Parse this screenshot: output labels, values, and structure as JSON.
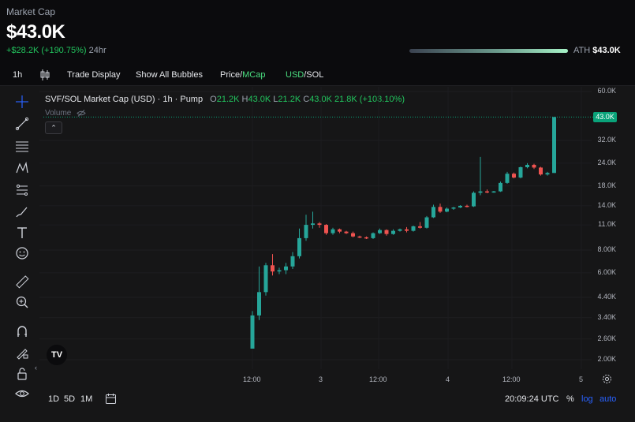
{
  "header": {
    "label": "Market Cap",
    "value": "$43.0K",
    "change_amount": "+$28.2K",
    "change_percent": "(+190.75%)",
    "change_period": "24hr",
    "ath_label": "ATH",
    "ath_value": "$43.0K",
    "ath_progress": 1.0
  },
  "toolbar": {
    "interval": "1h",
    "trade_display": "Trade Display",
    "show_all_bubbles": "Show All Bubbles",
    "price": "Price",
    "slash1": "/",
    "mcap": "MCap",
    "usd": "USD",
    "slash2": "/",
    "sol": "SOL"
  },
  "chart_header": {
    "title": "SVF/SOL Market Cap (USD) · 1h · Pump",
    "o_label": "O",
    "o_value": "21.2K",
    "h_label": "H",
    "h_value": "43.0K",
    "l_label": "L",
    "l_value": "21.2K",
    "c_label": "C",
    "c_value": "43.0K",
    "change": "21.8K (+103.10%)",
    "volume_label": "Volume"
  },
  "bottom_bar": {
    "range_1d": "1D",
    "range_5d": "5D",
    "range_1m": "1M",
    "clock": "20:09:24 UTC",
    "percent": "%",
    "log": "log",
    "auto": "auto"
  },
  "colors": {
    "up": "#26a69a",
    "down": "#ef5350",
    "accent": "#4ade80",
    "blue": "#2962ff"
  },
  "chart_data": {
    "type": "candlestick",
    "scale": "log",
    "y_ticks": [
      "60.0K",
      "32.0K",
      "24.0K",
      "18.0K",
      "14.0K",
      "11.0K",
      "8.00K",
      "6.00K",
      "4.40K",
      "3.40K",
      "2.60K",
      "2.00K"
    ],
    "last_price_label": "43.0K",
    "x_ticks": [
      "12:00",
      "3",
      "12:00",
      "4",
      "12:00",
      "5"
    ],
    "candles": [
      {
        "o": 2300,
        "h": 3700,
        "l": 2300,
        "c": 3500
      },
      {
        "o": 3500,
        "h": 6500,
        "l": 3300,
        "c": 4700
      },
      {
        "o": 4700,
        "h": 6800,
        "l": 4500,
        "c": 6600
      },
      {
        "o": 6600,
        "h": 7600,
        "l": 5800,
        "c": 6100
      },
      {
        "o": 6100,
        "h": 6400,
        "l": 5900,
        "c": 6200
      },
      {
        "o": 6200,
        "h": 6800,
        "l": 5900,
        "c": 6500
      },
      {
        "o": 6500,
        "h": 7800,
        "l": 6300,
        "c": 7400
      },
      {
        "o": 7400,
        "h": 10500,
        "l": 7200,
        "c": 9300
      },
      {
        "o": 9300,
        "h": 12500,
        "l": 9000,
        "c": 11000
      },
      {
        "o": 11000,
        "h": 13000,
        "l": 10500,
        "c": 11200
      },
      {
        "o": 11200,
        "h": 11400,
        "l": 10600,
        "c": 11000
      },
      {
        "o": 11000,
        "h": 11100,
        "l": 9700,
        "c": 9900
      },
      {
        "o": 9900,
        "h": 10600,
        "l": 9700,
        "c": 10400
      },
      {
        "o": 10400,
        "h": 10500,
        "l": 9900,
        "c": 10100
      },
      {
        "o": 10100,
        "h": 10200,
        "l": 9800,
        "c": 9900
      },
      {
        "o": 9900,
        "h": 10100,
        "l": 9400,
        "c": 9500
      },
      {
        "o": 9500,
        "h": 9600,
        "l": 9300,
        "c": 9400
      },
      {
        "o": 9400,
        "h": 9500,
        "l": 9200,
        "c": 9300
      },
      {
        "o": 9300,
        "h": 10000,
        "l": 9200,
        "c": 9900
      },
      {
        "o": 9900,
        "h": 10500,
        "l": 9800,
        "c": 10300
      },
      {
        "o": 10300,
        "h": 10400,
        "l": 9600,
        "c": 9800
      },
      {
        "o": 9800,
        "h": 10400,
        "l": 9700,
        "c": 10200
      },
      {
        "o": 10200,
        "h": 10500,
        "l": 10100,
        "c": 10400
      },
      {
        "o": 10400,
        "h": 10700,
        "l": 10000,
        "c": 10200
      },
      {
        "o": 10200,
        "h": 10900,
        "l": 10100,
        "c": 10800
      },
      {
        "o": 10800,
        "h": 11400,
        "l": 10500,
        "c": 10600
      },
      {
        "o": 10600,
        "h": 12300,
        "l": 10500,
        "c": 12100
      },
      {
        "o": 12100,
        "h": 14200,
        "l": 12000,
        "c": 13800
      },
      {
        "o": 13800,
        "h": 14400,
        "l": 12800,
        "c": 13000
      },
      {
        "o": 13000,
        "h": 13700,
        "l": 12900,
        "c": 13500
      },
      {
        "o": 13500,
        "h": 13800,
        "l": 13300,
        "c": 13700
      },
      {
        "o": 13700,
        "h": 14100,
        "l": 13600,
        "c": 14000
      },
      {
        "o": 14000,
        "h": 14200,
        "l": 13700,
        "c": 13900
      },
      {
        "o": 13900,
        "h": 16800,
        "l": 13800,
        "c": 16500
      },
      {
        "o": 16500,
        "h": 26000,
        "l": 16000,
        "c": 16800
      },
      {
        "o": 16800,
        "h": 17200,
        "l": 16400,
        "c": 16700
      },
      {
        "o": 16700,
        "h": 16900,
        "l": 16500,
        "c": 16800
      },
      {
        "o": 16800,
        "h": 19000,
        "l": 16700,
        "c": 18700
      },
      {
        "o": 18700,
        "h": 21500,
        "l": 18500,
        "c": 21000
      },
      {
        "o": 21000,
        "h": 21300,
        "l": 19800,
        "c": 20000
      },
      {
        "o": 20000,
        "h": 23000,
        "l": 19800,
        "c": 22800
      },
      {
        "o": 22800,
        "h": 24000,
        "l": 22500,
        "c": 23500
      },
      {
        "o": 23500,
        "h": 23800,
        "l": 22300,
        "c": 22700
      },
      {
        "o": 22700,
        "h": 22900,
        "l": 20500,
        "c": 20800
      },
      {
        "o": 20800,
        "h": 21500,
        "l": 20500,
        "c": 21200
      },
      {
        "o": 21200,
        "h": 43000,
        "l": 21200,
        "c": 43000
      }
    ]
  }
}
